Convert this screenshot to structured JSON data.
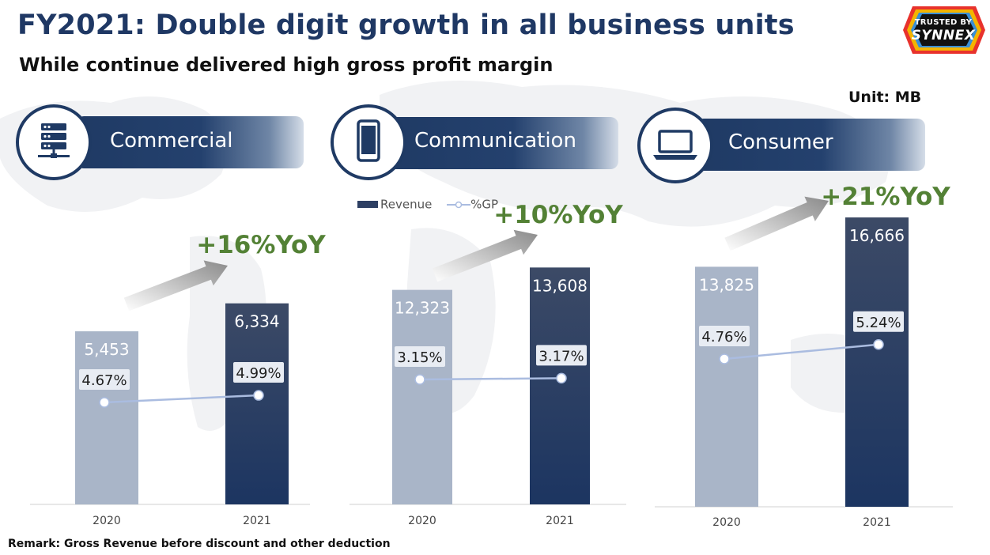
{
  "page": {
    "title": "FY2021: Double digit growth in all business units",
    "subtitle": "While continue delivered high gross profit margin",
    "unit": "Unit: MB",
    "remark": "Remark: Gross Revenue before discount and other deduction",
    "logo": {
      "line1": "TRUSTED BY",
      "line2": "SYNNEX"
    }
  },
  "legend": {
    "revenue": "Revenue",
    "gp": "%GP"
  },
  "colors": {
    "navy": "#1f3a64",
    "bar_2020": "#a9b5c8",
    "bar_2021_top": "#3c4a66",
    "bar_2021_bottom": "#1c3561",
    "growth_green": "#538135",
    "gp_line": "#aabce0"
  },
  "chart_data": [
    {
      "type": "bar",
      "title": "Commercial",
      "icon": "server-rack-icon",
      "categories": [
        "2020",
        "2021"
      ],
      "series": [
        {
          "name": "Revenue",
          "values": [
            5453,
            6334
          ],
          "labels": [
            "5,453",
            "6,334"
          ]
        },
        {
          "name": "%GP",
          "values": [
            4.67,
            4.99
          ],
          "labels": [
            "4.67%",
            "4.99%"
          ]
        }
      ],
      "growth": "+16%YoY"
    },
    {
      "type": "bar",
      "title": "Communication",
      "icon": "smartphone-icon",
      "categories": [
        "2020",
        "2021"
      ],
      "series": [
        {
          "name": "Revenue",
          "values": [
            12323,
            13608
          ],
          "labels": [
            "12,323",
            "13,608"
          ]
        },
        {
          "name": "%GP",
          "values": [
            3.15,
            3.17
          ],
          "labels": [
            "3.15%",
            "3.17%"
          ]
        }
      ],
      "growth": "+10%YoY"
    },
    {
      "type": "bar",
      "title": "Consumer",
      "icon": "laptop-icon",
      "categories": [
        "2020",
        "2021"
      ],
      "series": [
        {
          "name": "Revenue",
          "values": [
            13825,
            16666
          ],
          "labels": [
            "13,825",
            "16,666"
          ]
        },
        {
          "name": "%GP",
          "values": [
            4.76,
            5.24
          ],
          "labels": [
            "4.76%",
            "5.24%"
          ]
        }
      ],
      "growth": "+21%YoY"
    }
  ]
}
